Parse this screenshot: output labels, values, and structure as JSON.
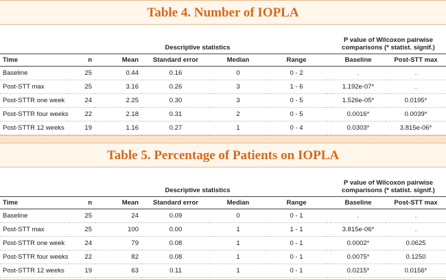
{
  "tables": [
    {
      "title": "Table 4. Number of IOPLA",
      "group_headers": {
        "descriptive": "Descriptive statistics",
        "pvalue": "P value of Wilcoxon pairwise comparisons (* statist. signif.)"
      },
      "columns": [
        "Time",
        "n",
        "Mean",
        "Standard error",
        "Median",
        "Range",
        "Baseline",
        "Post-STT max"
      ],
      "rows": [
        [
          "Baseline",
          "25",
          "0.44",
          "0.16",
          "0",
          "0 - 2",
          ".",
          "."
        ],
        [
          "Post-STT max",
          "25",
          "3.16",
          "0.26",
          "3",
          "1 - 6",
          "1.192e-07*",
          "."
        ],
        [
          "Post-STTR one week",
          "24",
          "2.25",
          "0.30",
          "3",
          "0 - 5",
          "1.526e-05*",
          "0.0195*"
        ],
        [
          "Post-STTR four weeks",
          "22",
          "2.18",
          "0.31",
          "2",
          "0 - 5",
          "0.0016*",
          "0.0039*"
        ],
        [
          "Post-STTR 12 weeks",
          "19",
          "1.16",
          "0.27",
          "1",
          "0 - 4",
          "0.0303*",
          "3.815e-06*"
        ]
      ]
    },
    {
      "title": "Table 5. Percentage of Patients on IOPLA",
      "group_headers": {
        "descriptive": "Descriptive statistics",
        "pvalue": "P value of Wilcoxon pairwise comparisons (* statist. signif.)"
      },
      "columns": [
        "Time",
        "n",
        "Mean",
        "Standard error",
        "Median",
        "Range",
        "Baseline",
        "Post-STT max"
      ],
      "rows": [
        [
          "Baseline",
          "25",
          "24",
          "0.09",
          "0",
          "0 - 1",
          ".",
          "."
        ],
        [
          "Post-STT max",
          "25",
          "100",
          "0.00",
          "1",
          "1 - 1",
          "3.815e-06*",
          "."
        ],
        [
          "Post-STTR one week",
          "24",
          "79",
          "0.08",
          "1",
          "0 - 1",
          "0.0002*",
          "0.0625"
        ],
        [
          "Post-STTR four weeks",
          "22",
          "82",
          "0.08",
          "1",
          "0 - 1",
          "0.0075*",
          "0.1250"
        ],
        [
          "Post-STTR 12 weeks",
          "19",
          "63",
          "0.11",
          "1",
          "0 - 1",
          "0.0215*",
          "0.0156*"
        ]
      ]
    }
  ],
  "colors": {
    "accent": "#d46a1b",
    "background": "#fbe3c9",
    "border": "#e8b88a"
  }
}
